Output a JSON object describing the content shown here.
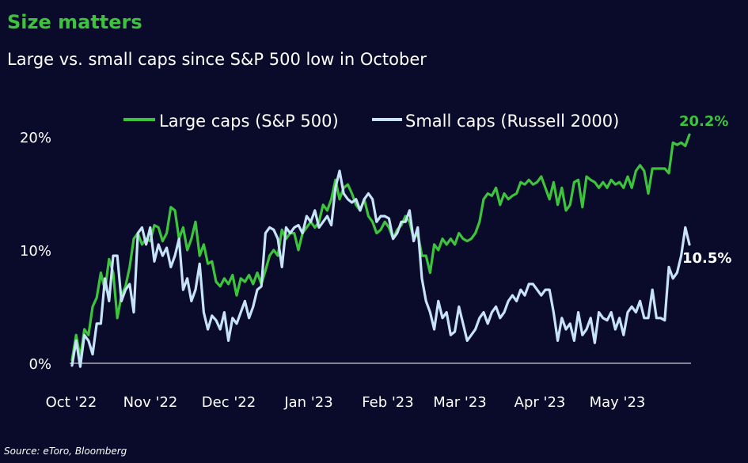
{
  "title": "Size matters",
  "subtitle": "Large vs. small caps since S&P 500 low in October",
  "source": "Source: eToro, Bloomberg",
  "colors": {
    "background": "#0a0a2a",
    "large": "#3cc43c",
    "small": "#c6e3f7",
    "title": "#3cc43c"
  },
  "chart_data": {
    "type": "line",
    "x_tick_labels": [
      "Oct '22",
      "Nov '22",
      "Dec '22",
      "Jan '23",
      "Feb '23",
      "Mar '23",
      "Apr '23",
      "May '23"
    ],
    "y_tick_labels": [
      "0%",
      "10%",
      "20%"
    ],
    "y_ticks": [
      0,
      10,
      20
    ],
    "ylim": [
      0,
      20
    ],
    "xlim": [
      0,
      150
    ],
    "grid": false,
    "legend_position": "top",
    "series": [
      {
        "name": "Large caps (S&P 500)",
        "color": "#3cc43c",
        "end_label": "20.2%",
        "x": [
          0,
          1,
          2,
          3,
          4,
          5,
          6,
          7,
          8,
          9,
          10,
          11,
          12,
          13,
          14,
          15,
          16,
          17,
          18,
          19,
          20,
          21,
          22,
          23,
          24,
          25,
          26,
          27,
          28,
          29,
          30,
          31,
          32,
          33,
          34,
          35,
          36,
          37,
          38,
          39,
          40,
          41,
          42,
          43,
          44,
          45,
          46,
          47,
          48,
          49,
          50,
          51,
          52,
          53,
          54,
          55,
          56,
          57,
          58,
          59,
          60,
          61,
          62,
          63,
          64,
          65,
          66,
          67,
          68,
          69,
          70,
          71,
          72,
          73,
          74,
          75,
          76,
          77,
          78,
          79,
          80,
          81,
          82,
          83,
          84,
          85,
          86,
          87,
          88,
          89,
          90,
          91,
          92,
          93,
          94,
          95,
          96,
          97,
          98,
          99,
          100,
          101,
          102,
          103,
          104,
          105,
          106,
          107,
          108,
          109,
          110,
          111,
          112,
          113,
          114,
          115,
          116,
          117,
          118,
          119,
          120,
          121,
          122,
          123,
          124,
          125,
          126,
          127,
          128,
          129,
          130,
          131,
          132,
          133,
          134,
          135,
          136,
          137,
          138,
          139,
          140,
          141,
          142,
          143,
          144,
          145,
          146,
          147,
          148,
          149,
          150
        ],
        "values": [
          0.3,
          2.5,
          0.5,
          3.0,
          2.5,
          5.0,
          5.8,
          8.0,
          6.5,
          9.2,
          8.0,
          4.0,
          6.0,
          6.8,
          8.5,
          11.0,
          11.5,
          10.5,
          11.0,
          10.8,
          12.2,
          12.0,
          10.8,
          11.5,
          13.8,
          13.5,
          11.0,
          12.0,
          10.0,
          11.0,
          12.5,
          9.5,
          10.5,
          8.8,
          9.0,
          7.2,
          6.8,
          7.5,
          7.0,
          7.8,
          6.0,
          7.5,
          7.2,
          7.8,
          7.0,
          8.0,
          7.0,
          8.2,
          9.5,
          10.0,
          9.5,
          11.8,
          11.0,
          11.5,
          11.5,
          10.0,
          11.5,
          12.0,
          12.5,
          12.0,
          12.5,
          14.0,
          13.5,
          14.5,
          16.2,
          14.5,
          15.5,
          15.8,
          15.0,
          14.0,
          13.5,
          14.5,
          13.0,
          12.5,
          11.5,
          11.8,
          12.5,
          12.0,
          11.0,
          11.8,
          12.2,
          13.0,
          12.5,
          11.0,
          11.5,
          9.5,
          9.5,
          8.0,
          10.5,
          10.0,
          11.0,
          10.5,
          11.0,
          10.5,
          11.5,
          11.0,
          10.8,
          11.0,
          11.5,
          12.5,
          14.5,
          15.0,
          14.8,
          15.5,
          14.0,
          15.0,
          14.5,
          14.8,
          15.0,
          16.0,
          15.8,
          16.2,
          15.8,
          16.0,
          16.5,
          15.5,
          14.5,
          16.0,
          14.0,
          15.5,
          13.5,
          14.0,
          16.0,
          16.2,
          13.8,
          16.5,
          16.2,
          16.0,
          15.5,
          16.0,
          15.5,
          16.2,
          15.8,
          16.0,
          15.5,
          16.5,
          15.5,
          17.0,
          17.5,
          17.0,
          15.0,
          17.2,
          17.2,
          17.2,
          17.2,
          16.8,
          19.5,
          19.3,
          19.5,
          19.2,
          20.2
        ]
      },
      {
        "name": "Small caps (Russell 2000)",
        "color": "#c6e3f7",
        "end_label": "10.5%",
        "x": [
          0,
          1,
          2,
          3,
          4,
          5,
          6,
          7,
          8,
          9,
          10,
          11,
          12,
          13,
          14,
          15,
          16,
          17,
          18,
          19,
          20,
          21,
          22,
          23,
          24,
          25,
          26,
          27,
          28,
          29,
          30,
          31,
          32,
          33,
          34,
          35,
          36,
          37,
          38,
          39,
          40,
          41,
          42,
          43,
          44,
          45,
          46,
          47,
          48,
          49,
          50,
          51,
          52,
          53,
          54,
          55,
          56,
          57,
          58,
          59,
          60,
          61,
          62,
          63,
          64,
          65,
          66,
          67,
          68,
          69,
          70,
          71,
          72,
          73,
          74,
          75,
          76,
          77,
          78,
          79,
          80,
          81,
          82,
          83,
          84,
          85,
          86,
          87,
          88,
          89,
          90,
          91,
          92,
          93,
          94,
          95,
          96,
          97,
          98,
          99,
          100,
          101,
          102,
          103,
          104,
          105,
          106,
          107,
          108,
          109,
          110,
          111,
          112,
          113,
          114,
          115,
          116,
          117,
          118,
          119,
          120,
          121,
          122,
          123,
          124,
          125,
          126,
          127,
          128,
          129,
          130,
          131,
          132,
          133,
          134,
          135,
          136,
          137,
          138,
          139,
          140,
          141,
          142,
          143,
          144,
          145,
          146,
          147,
          148,
          149,
          150
        ],
        "values": [
          -0.2,
          2.0,
          -0.3,
          2.5,
          2.0,
          0.8,
          3.5,
          3.5,
          7.5,
          5.5,
          9.5,
          9.5,
          5.5,
          6.5,
          7.0,
          4.5,
          11.5,
          12.0,
          10.5,
          12.0,
          9.0,
          10.5,
          9.5,
          10.2,
          8.5,
          9.5,
          11.0,
          6.5,
          7.5,
          5.5,
          6.5,
          8.8,
          4.5,
          3.0,
          4.2,
          3.8,
          3.0,
          4.5,
          2.0,
          4.0,
          3.5,
          4.5,
          5.5,
          4.0,
          5.0,
          6.5,
          6.8,
          11.5,
          12.0,
          11.8,
          11.0,
          8.5,
          12.0,
          11.5,
          12.0,
          12.2,
          11.5,
          13.0,
          12.5,
          13.5,
          12.0,
          12.5,
          13.0,
          12.2,
          15.5,
          17.0,
          15.0,
          14.5,
          14.2,
          14.5,
          13.5,
          14.5,
          15.0,
          14.5,
          12.5,
          13.0,
          13.0,
          12.8,
          11.0,
          11.5,
          12.5,
          12.5,
          13.5,
          10.8,
          12.0,
          7.5,
          5.5,
          4.5,
          3.0,
          5.5,
          4.0,
          4.5,
          2.5,
          2.8,
          5.0,
          3.5,
          2.0,
          2.5,
          3.0,
          4.0,
          4.5,
          3.5,
          4.5,
          5.0,
          4.0,
          4.5,
          5.5,
          6.0,
          5.5,
          6.5,
          6.0,
          7.0,
          7.0,
          6.5,
          6.0,
          6.5,
          6.5,
          4.5,
          2.0,
          4.0,
          3.0,
          3.5,
          2.0,
          4.5,
          2.5,
          3.0,
          4.0,
          1.8,
          4.5,
          4.0,
          3.8,
          4.5,
          3.0,
          4.0,
          2.5,
          4.5,
          5.0,
          4.5,
          5.5,
          4.0,
          4.0,
          6.5,
          4.0,
          4.0,
          3.8,
          8.5,
          7.5,
          8.0,
          9.5,
          12.0,
          10.5
        ]
      }
    ]
  }
}
